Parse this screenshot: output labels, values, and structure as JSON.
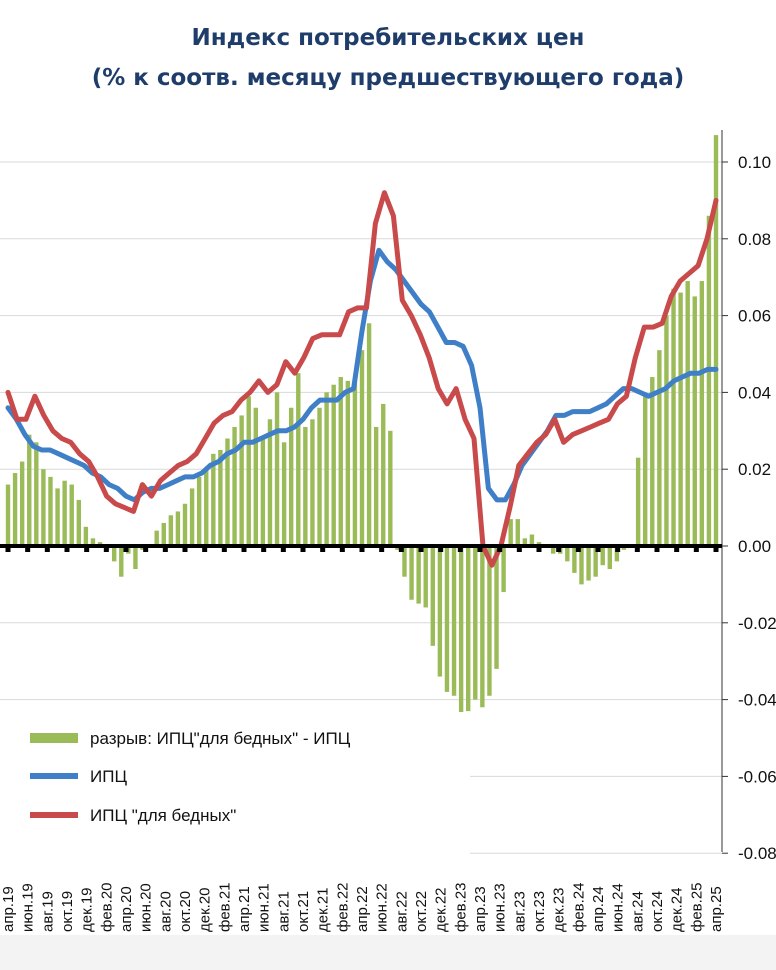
{
  "title_line1": "Индекс потребительских цен",
  "title_line2": "(% к соотв. месяцу предшествующего года)",
  "colors": {
    "gap": "#9bbb59",
    "cpi": "#3f7fc8",
    "cpi_poor": "#c94a4a",
    "title": "#1f3d6b"
  },
  "chart_data": {
    "type": "bar+line",
    "y_right_ticks": [
      "0.10",
      "0.08",
      "0.06",
      "0.04",
      "0.02",
      "0.00",
      "-0.02",
      "-0.04",
      "-0.06",
      "-0.08"
    ],
    "ylim": [
      -0.08,
      0.1
    ],
    "x_labels": [
      "апр.19",
      "июн.19",
      "авг.19",
      "окт.19",
      "дек.19",
      "фев.20",
      "апр.20",
      "июн.20",
      "авг.20",
      "окт.20",
      "дек.20",
      "фев.21",
      "апр.21",
      "июн.21",
      "авг.21",
      "окт.21",
      "дек.21",
      "фев.22",
      "апр.22",
      "июн.22",
      "авг.22",
      "окт.22",
      "дек.22",
      "фев.23",
      "апр.23",
      "июн.23",
      "авг.23",
      "окт.23",
      "дек.23",
      "фев.24",
      "апр.24",
      "июн.24",
      "авг.24",
      "окт.24",
      "дек.24",
      "фев.25",
      "апр.25"
    ],
    "series": [
      {
        "name": "разрыв: ИПЦ\"для бедных\" - ИПЦ",
        "kind": "bar",
        "values": [
          0.016,
          0.019,
          0.022,
          0.029,
          0.027,
          0.02,
          0.018,
          0.015,
          0.017,
          0.016,
          0.012,
          0.005,
          0.002,
          0.001,
          -0.001,
          -0.004,
          -0.008,
          -0.002,
          -0.006,
          -0.001,
          0.0,
          0.004,
          0.006,
          0.008,
          0.009,
          0.011,
          0.015,
          0.018,
          0.02,
          0.024,
          0.025,
          0.028,
          0.031,
          0.034,
          0.039,
          0.036,
          0.028,
          0.033,
          0.04,
          0.027,
          0.036,
          0.045,
          0.031,
          0.033,
          0.036,
          0.04,
          0.042,
          0.044,
          0.043,
          0.043,
          0.051,
          0.058,
          0.031,
          0.037,
          0.03,
          -0.001,
          -0.008,
          -0.014,
          -0.015,
          -0.016,
          -0.026,
          -0.034,
          -0.038,
          -0.039,
          -0.045,
          -0.043,
          -0.04,
          -0.042,
          -0.039,
          -0.032,
          -0.012,
          0.007,
          0.007,
          0.002,
          0.003,
          0.001,
          0.0,
          -0.002,
          -0.002,
          -0.004,
          -0.007,
          -0.01,
          -0.009,
          -0.008,
          -0.005,
          -0.006,
          -0.004,
          -0.001,
          0.0,
          0.023,
          0.039,
          0.044,
          0.051,
          0.06,
          0.067,
          0.066,
          0.069,
          0.065,
          0.069,
          0.086,
          0.107
        ]
      },
      {
        "name": "ИПЦ",
        "kind": "line",
        "values": [
          0.036,
          0.033,
          0.029,
          0.026,
          0.025,
          0.025,
          0.024,
          0.023,
          0.022,
          0.021,
          0.019,
          0.018,
          0.016,
          0.015,
          0.013,
          0.012,
          0.014,
          0.015,
          0.015,
          0.016,
          0.017,
          0.018,
          0.018,
          0.019,
          0.021,
          0.022,
          0.024,
          0.025,
          0.027,
          0.027,
          0.028,
          0.029,
          0.03,
          0.03,
          0.031,
          0.033,
          0.036,
          0.038,
          0.038,
          0.038,
          0.04,
          0.041,
          0.056,
          0.069,
          0.077,
          0.074,
          0.072,
          0.069,
          0.066,
          0.063,
          0.061,
          0.057,
          0.053,
          0.053,
          0.052,
          0.047,
          0.036,
          0.015,
          0.012,
          0.012,
          0.016,
          0.021,
          0.024,
          0.027,
          0.03,
          0.034,
          0.034,
          0.035,
          0.035,
          0.035,
          0.036,
          0.037,
          0.039,
          0.041,
          0.041,
          0.04,
          0.039,
          0.04,
          0.041,
          0.043,
          0.044,
          0.045,
          0.045,
          0.046,
          0.046
        ]
      },
      {
        "name": "ИПЦ \"для бедных\"",
        "kind": "line",
        "values": [
          0.04,
          0.033,
          0.033,
          0.039,
          0.034,
          0.03,
          0.028,
          0.027,
          0.024,
          0.022,
          0.018,
          0.013,
          0.011,
          0.01,
          0.009,
          0.016,
          0.013,
          0.017,
          0.019,
          0.021,
          0.022,
          0.024,
          0.028,
          0.032,
          0.034,
          0.035,
          0.038,
          0.04,
          0.043,
          0.04,
          0.042,
          0.048,
          0.045,
          0.049,
          0.054,
          0.055,
          0.055,
          0.055,
          0.061,
          0.062,
          0.062,
          0.084,
          0.092,
          0.086,
          0.064,
          0.06,
          0.055,
          0.049,
          0.041,
          0.037,
          0.041,
          0.033,
          0.028,
          0.0,
          -0.005,
          0.0,
          0.01,
          0.021,
          0.024,
          0.027,
          0.029,
          0.033,
          0.027,
          0.029,
          0.03,
          0.031,
          0.032,
          0.033,
          0.037,
          0.039,
          0.049,
          0.057,
          0.057,
          0.058,
          0.065,
          0.069,
          0.071,
          0.073,
          0.08,
          0.09
        ]
      }
    ],
    "legend_position": "bottom-left",
    "grid": true
  }
}
